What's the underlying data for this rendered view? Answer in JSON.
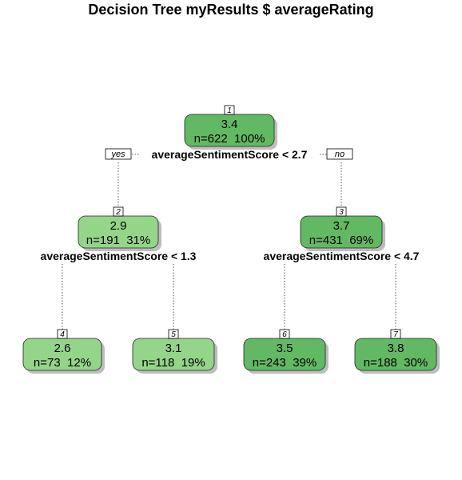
{
  "title": "Decision Tree myResults $ averageRating",
  "colors": {
    "dark_green": "#63b963",
    "light_green": "#94d589",
    "shadow": "#bdbdbd"
  },
  "branch_labels": {
    "yes": "yes",
    "no": "no"
  },
  "nodes": [
    {
      "id": "1",
      "value": "3.4",
      "stats": "n=622  100%",
      "shade": "dark",
      "split": "averageSentimentScore < 2.7"
    },
    {
      "id": "2",
      "value": "2.9",
      "stats": "n=191  31%",
      "shade": "light",
      "split": "averageSentimentScore < 1.3"
    },
    {
      "id": "3",
      "value": "3.7",
      "stats": "n=431  69%",
      "shade": "dark",
      "split": "averageSentimentScore < 4.7"
    },
    {
      "id": "4",
      "value": "2.6",
      "stats": "n=73  12%",
      "shade": "light",
      "split": ""
    },
    {
      "id": "5",
      "value": "3.1",
      "stats": "n=118  19%",
      "shade": "light",
      "split": ""
    },
    {
      "id": "6",
      "value": "3.5",
      "stats": "n=243  39%",
      "shade": "dark",
      "split": ""
    },
    {
      "id": "7",
      "value": "3.8",
      "stats": "n=188  30%",
      "shade": "dark",
      "split": ""
    }
  ]
}
